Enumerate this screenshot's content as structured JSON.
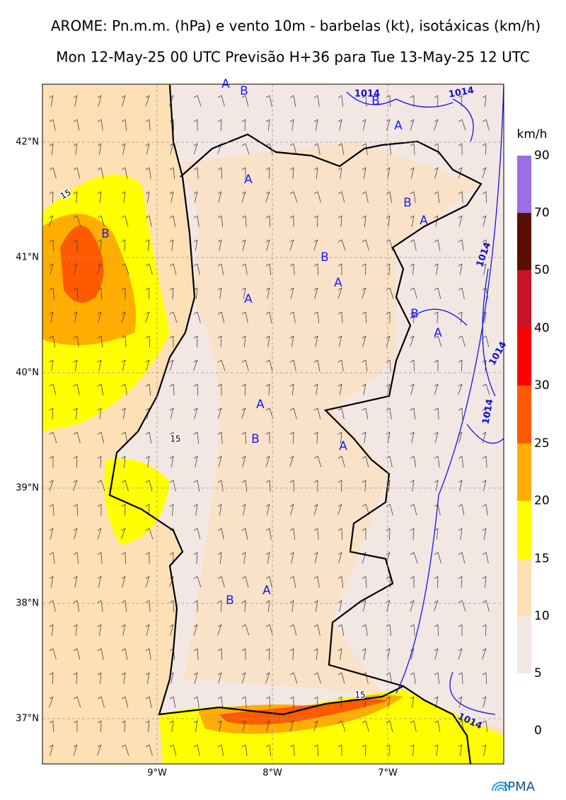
{
  "header": {
    "title": "AROME: Pn.m.m. (hPa) e vento 10m - barbelas (kt), isotáxicas (km/h)",
    "subtitle": "Mon 12-May-25 00 UTC Previsão H+36 para Tue 13-May-25 12 UTC"
  },
  "map": {
    "lat_labels": [
      "42°N",
      "41°N",
      "40°N",
      "39°N",
      "38°N",
      "37°N"
    ],
    "lon_labels": [
      "9°W",
      "8°W",
      "7°W"
    ],
    "markers": [
      "A",
      "B",
      "B",
      "A",
      "A",
      "B",
      "A",
      "B",
      "B",
      "A",
      "A",
      "B",
      "A",
      "A",
      "B",
      "A",
      "A",
      "B"
    ],
    "contour_labels": [
      "1014",
      "1014",
      "1014",
      "1014",
      "1014",
      "1014",
      "15",
      "15",
      "15"
    ]
  },
  "colorbar": {
    "unit": "km/h",
    "ticks": [
      0,
      5,
      10,
      15,
      20,
      25,
      30,
      40,
      50,
      70,
      90
    ],
    "colors": [
      "#ffffff",
      "#f3e7e4",
      "#fde0b5",
      "#ffff00",
      "#ffad00",
      "#ff5a00",
      "#ff0000",
      "#c81428",
      "#5a0f00",
      "#9b6ee6"
    ]
  },
  "logo": "IPMA"
}
